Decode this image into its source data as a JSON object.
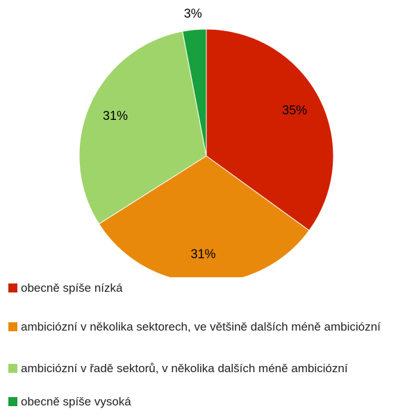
{
  "chart_data": {
    "type": "pie",
    "categories": [
      "obecně spíše nízká",
      "ambiciózní v několika sektorech, ve většině dalších méně ambiciózní",
      "ambiciózní v řadě sektorů, v několika dalších méně ambiciózní",
      "obecně spíše vysoká"
    ],
    "values": [
      35,
      31,
      31,
      3
    ],
    "value_labels": [
      "35%",
      "31%",
      "31%",
      "3%"
    ],
    "colors": [
      "#d02000",
      "#e8890c",
      "#9fd46b",
      "#17a03c"
    ]
  }
}
